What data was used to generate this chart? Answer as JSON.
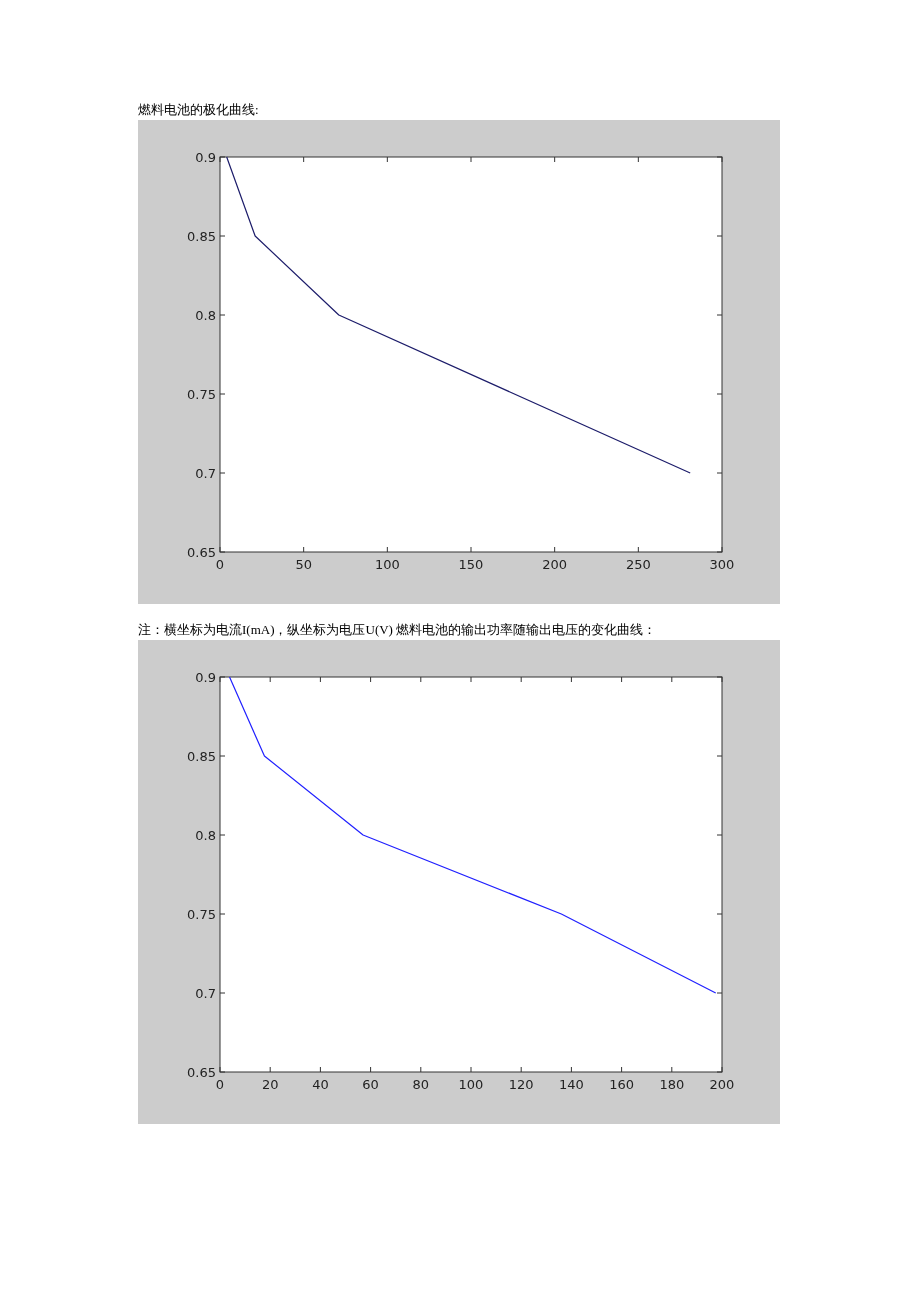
{
  "chart_data": [
    {
      "type": "line",
      "title": "燃料电池的极化曲线:",
      "annotations": [
        "注：横坐标为电流I(mA)，纵坐标为电压U(V)"
      ],
      "x": [
        4,
        21,
        71,
        281
      ],
      "series": [
        {
          "color": "#1c1c6a",
          "values": [
            0.9,
            0.85,
            0.8,
            0.7
          ]
        }
      ],
      "xlim": [
        0,
        300
      ],
      "xticks": [
        0,
        50,
        100,
        150,
        200,
        250,
        300
      ],
      "ylim": [
        0.65,
        0.9
      ],
      "yticks": [
        0.65,
        0.7,
        0.75,
        0.8,
        0.85,
        0.9
      ]
    },
    {
      "type": "line",
      "title": "燃料电池的输出功率随输出电压的变化曲线：",
      "x": [
        3.8,
        17.7,
        57,
        136,
        197.5
      ],
      "series": [
        {
          "color": "#2020ff",
          "values": [
            0.9,
            0.85,
            0.8,
            0.75,
            0.7
          ]
        }
      ],
      "xlim": [
        0,
        200
      ],
      "xticks": [
        0,
        20,
        40,
        60,
        80,
        100,
        120,
        140,
        160,
        180,
        200
      ],
      "ylim": [
        0.65,
        0.9
      ],
      "yticks": [
        0.65,
        0.7,
        0.75,
        0.8,
        0.85,
        0.9
      ]
    }
  ]
}
